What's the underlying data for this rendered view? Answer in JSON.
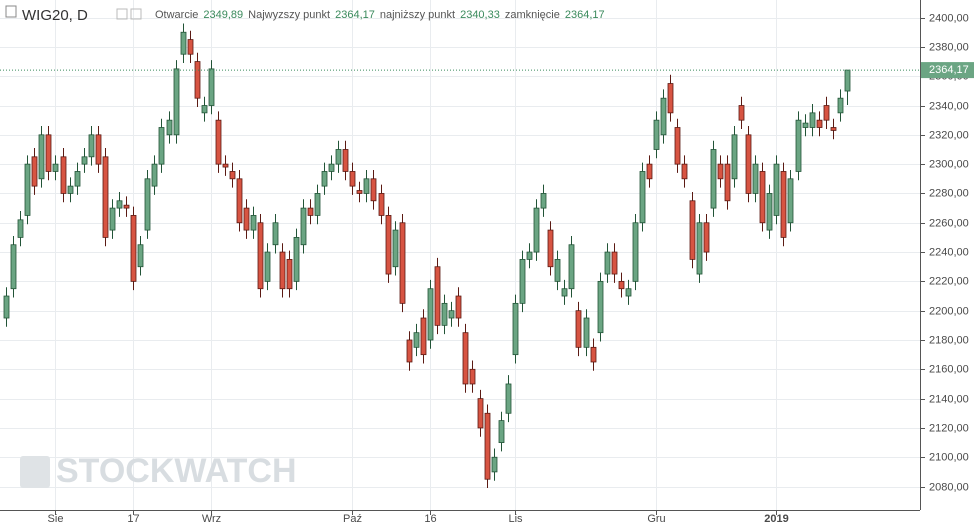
{
  "chart_data": {
    "type": "candlestick",
    "title": "WIG20, D",
    "ohlc_header": [
      {
        "name": "Otwarcie",
        "value": "2349,89"
      },
      {
        "name": "Najwyzszy punkt",
        "value": "2364,17"
      },
      {
        "name": "najniższy punkt",
        "value": "2340,33"
      },
      {
        "name": "zamknięcie",
        "value": "2364,17"
      }
    ],
    "watermark": "STOCKWATCH",
    "up_color": "#6ba583",
    "down_color": "#d75442",
    "grid": true,
    "categories": [
      null,
      null,
      null,
      null,
      null,
      null,
      null,
      "Sie",
      null,
      null,
      null,
      null,
      null,
      null,
      null,
      null,
      null,
      null,
      "17",
      null,
      null,
      null,
      null,
      null,
      null,
      null,
      null,
      null,
      null,
      "Wrz",
      null,
      null,
      null,
      null,
      null,
      null,
      null,
      null,
      null,
      null,
      null,
      null,
      null,
      null,
      null,
      null,
      null,
      null,
      null,
      "Paź",
      null,
      null,
      null,
      null,
      null,
      null,
      null,
      null,
      null,
      null,
      "16",
      null,
      null,
      null,
      null,
      null,
      null,
      null,
      null,
      null,
      null,
      null,
      "Lis",
      null,
      null,
      null,
      null,
      null,
      null,
      null,
      null,
      null,
      null,
      null,
      null,
      null,
      null,
      null,
      null,
      null,
      null,
      null,
      "Gru",
      null,
      null,
      null,
      null,
      null,
      null,
      null,
      null,
      null,
      null,
      null,
      null,
      null,
      null,
      null,
      null,
      "2019",
      null,
      null,
      null,
      null,
      null,
      null,
      null,
      null,
      null,
      null
    ],
    "open": [
      2195,
      2215,
      2250,
      2265,
      2305,
      2290,
      2320,
      2295,
      2305,
      2280,
      2285,
      2300,
      2305,
      2320,
      2305,
      2255,
      2270,
      2272,
      2265,
      2230,
      2255,
      2285,
      2300,
      2320,
      2320,
      2375,
      2385,
      2370,
      2335,
      2340,
      2330,
      2300,
      2295,
      2290,
      2270,
      2255,
      2260,
      2220,
      2245,
      2240,
      2235,
      2220,
      2245,
      2270,
      2265,
      2285,
      2295,
      2300,
      2310,
      2295,
      2282,
      2280,
      2290,
      2280,
      2265,
      2230,
      2260,
      2180,
      2175,
      2195,
      2180,
      2230,
      2190,
      2195,
      2210,
      2185,
      2160,
      2140,
      2130,
      2090,
      2110,
      2130,
      2170,
      2205,
      2235,
      2240,
      2270,
      2255,
      2220,
      2210,
      2215,
      2200,
      2175,
      2175,
      2185,
      2225,
      2240,
      2220,
      2210,
      2220,
      2260,
      2300,
      2310,
      2320,
      2355,
      2325,
      2300,
      2275,
      2225,
      2260,
      2270,
      2300,
      2300,
      2290,
      2340,
      2320,
      2280,
      2295,
      2255,
      2265,
      2295,
      2260,
      2295,
      2325,
      2325,
      2330,
      2340,
      2325,
      2335,
      2349.89
    ],
    "high": [
      2216,
      2251,
      2268,
      2306,
      2311,
      2326,
      2326,
      2306,
      2311,
      2291,
      2301,
      2311,
      2326,
      2326,
      2311,
      2276,
      2281,
      2278,
      2271,
      2251,
      2296,
      2306,
      2331,
      2336,
      2371,
      2396,
      2391,
      2376,
      2346,
      2371,
      2336,
      2306,
      2301,
      2296,
      2276,
      2271,
      2266,
      2246,
      2266,
      2246,
      2241,
      2256,
      2276,
      2276,
      2286,
      2301,
      2306,
      2316,
      2316,
      2301,
      2288,
      2296,
      2296,
      2286,
      2271,
      2261,
      2266,
      2186,
      2191,
      2201,
      2221,
      2236,
      2211,
      2206,
      2216,
      2191,
      2166,
      2146,
      2136,
      2106,
      2131,
      2156,
      2211,
      2241,
      2246,
      2276,
      2286,
      2261,
      2241,
      2221,
      2251,
      2206,
      2201,
      2181,
      2226,
      2246,
      2246,
      2226,
      2221,
      2266,
      2301,
      2306,
      2336,
      2351,
      2361,
      2331,
      2306,
      2281,
      2266,
      2266,
      2316,
      2306,
      2306,
      2326,
      2346,
      2326,
      2306,
      2301,
      2286,
      2306,
      2301,
      2296,
      2336,
      2334,
      2341,
      2336,
      2346,
      2331,
      2351,
      2364.17
    ],
    "low": [
      2189,
      2209,
      2244,
      2259,
      2279,
      2284,
      2289,
      2289,
      2274,
      2274,
      2279,
      2294,
      2299,
      2294,
      2244,
      2249,
      2264,
      2264,
      2214,
      2224,
      2249,
      2279,
      2294,
      2314,
      2314,
      2369,
      2369,
      2339,
      2329,
      2334,
      2294,
      2292,
      2284,
      2254,
      2249,
      2249,
      2209,
      2214,
      2239,
      2209,
      2209,
      2214,
      2239,
      2259,
      2259,
      2279,
      2289,
      2294,
      2289,
      2279,
      2274,
      2274,
      2269,
      2259,
      2219,
      2224,
      2199,
      2159,
      2169,
      2164,
      2174,
      2184,
      2184,
      2189,
      2189,
      2144,
      2144,
      2114,
      2079,
      2084,
      2104,
      2124,
      2164,
      2199,
      2229,
      2234,
      2264,
      2224,
      2214,
      2204,
      2209,
      2169,
      2169,
      2159,
      2179,
      2219,
      2219,
      2209,
      2204,
      2214,
      2254,
      2284,
      2304,
      2314,
      2329,
      2294,
      2284,
      2229,
      2219,
      2234,
      2264,
      2284,
      2269,
      2284,
      2324,
      2274,
      2274,
      2254,
      2249,
      2259,
      2244,
      2254,
      2289,
      2319,
      2319,
      2319,
      2324,
      2317,
      2329,
      2340.33
    ],
    "close": [
      2210,
      2245,
      2262,
      2300,
      2285,
      2320,
      2295,
      2300,
      2280,
      2285,
      2295,
      2305,
      2320,
      2300,
      2250,
      2270,
      2275,
      2270,
      2220,
      2245,
      2290,
      2300,
      2325,
      2330,
      2365,
      2390,
      2375,
      2345,
      2340,
      2365,
      2300,
      2298,
      2290,
      2260,
      2255,
      2265,
      2215,
      2240,
      2260,
      2215,
      2215,
      2250,
      2270,
      2265,
      2280,
      2295,
      2300,
      2310,
      2295,
      2285,
      2280,
      2290,
      2275,
      2265,
      2225,
      2255,
      2205,
      2165,
      2185,
      2170,
      2215,
      2190,
      2205,
      2200,
      2195,
      2150,
      2150,
      2120,
      2085,
      2100,
      2125,
      2150,
      2205,
      2235,
      2240,
      2270,
      2280,
      2230,
      2235,
      2215,
      2245,
      2175,
      2195,
      2165,
      2220,
      2240,
      2225,
      2215,
      2215,
      2260,
      2295,
      2290,
      2330,
      2345,
      2335,
      2300,
      2290,
      2235,
      2260,
      2240,
      2310,
      2290,
      2275,
      2320,
      2330,
      2280,
      2300,
      2260,
      2280,
      2300,
      2250,
      2290,
      2330,
      2328,
      2335,
      2325,
      2330,
      2323,
      2345,
      2364.17
    ],
    "price_line": {
      "value": 2364.17,
      "label": "2364,17"
    },
    "ylim": [
      2064,
      2412
    ],
    "yticks": [
      {
        "value": 2080,
        "label": "2080,00"
      },
      {
        "value": 2100,
        "label": "2100,00"
      },
      {
        "value": 2120,
        "label": "2120,00"
      },
      {
        "value": 2140,
        "label": "2140,00"
      },
      {
        "value": 2160,
        "label": "2160,00"
      },
      {
        "value": 2180,
        "label": "2180,00"
      },
      {
        "value": 2200,
        "label": "2200,00"
      },
      {
        "value": 2220,
        "label": "2220,00"
      },
      {
        "value": 2240,
        "label": "2240,00"
      },
      {
        "value": 2260,
        "label": "2260,00"
      },
      {
        "value": 2280,
        "label": "2280,00"
      },
      {
        "value": 2300,
        "label": "2300,00"
      },
      {
        "value": 2320,
        "label": "2320,00"
      },
      {
        "value": 2340,
        "label": "2340,00"
      },
      {
        "value": 2360,
        "label": "2360,00"
      },
      {
        "value": 2380,
        "label": "2380,00"
      },
      {
        "value": 2400,
        "label": "2400,00"
      }
    ]
  }
}
